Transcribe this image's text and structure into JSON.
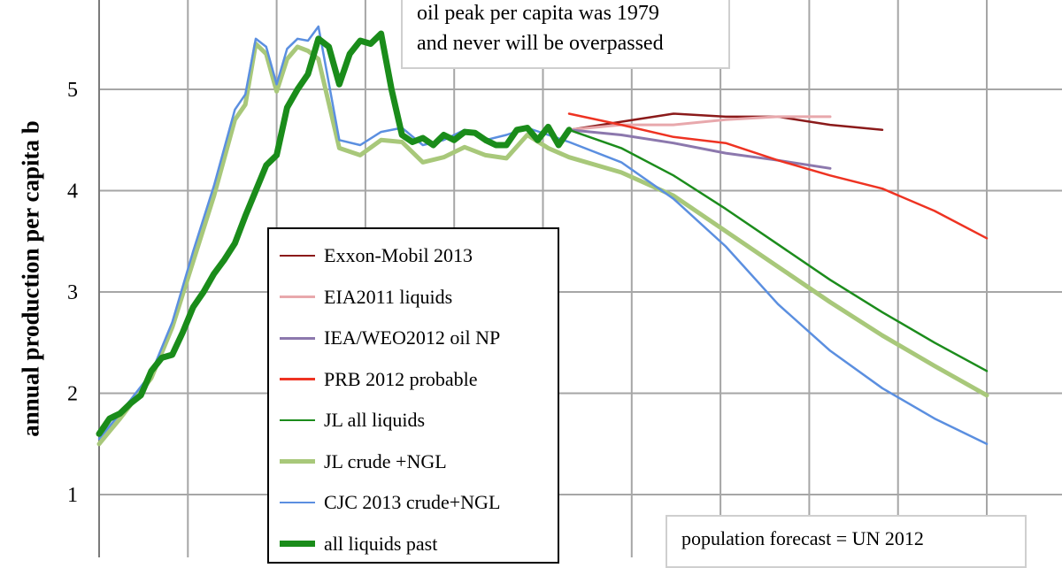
{
  "chart_data": {
    "type": "line",
    "title": "",
    "ylabel": "annual production per capita b",
    "xlabel": "",
    "ylim": [
      1,
      5.5
    ],
    "yticks": [
      1,
      2,
      3,
      4,
      5
    ],
    "grid": true,
    "legend_position": "center-left",
    "annotations": {
      "top": [
        "oil peak per capita was 1979",
        "and never will be overpassed"
      ],
      "bottom": "population forecast = UN 2012"
    },
    "series": [
      {
        "name": "Exxon-Mobil 2013",
        "color": "#8b1a1a",
        "width": 2.5,
        "x": [
          2010,
          2015,
          2020,
          2025,
          2030,
          2035,
          2040
        ],
        "y": [
          4.6,
          4.68,
          4.76,
          4.73,
          4.73,
          4.65,
          4.6
        ]
      },
      {
        "name": "EIA2011 liquids",
        "color": "#e8a8ac",
        "width": 3,
        "x": [
          2010,
          2015,
          2020,
          2025,
          2030,
          2035
        ],
        "y": [
          4.6,
          4.65,
          4.65,
          4.7,
          4.73,
          4.73
        ]
      },
      {
        "name": "IEA/WEO2012 oil NP",
        "color": "#8c78ad",
        "width": 3,
        "x": [
          2010,
          2015,
          2020,
          2025,
          2030,
          2035
        ],
        "y": [
          4.6,
          4.55,
          4.47,
          4.37,
          4.3,
          4.22
        ]
      },
      {
        "name": "PRB 2012 probable",
        "color": "#ee3322",
        "width": 2.5,
        "x": [
          2010,
          2015,
          2020,
          2025,
          2030,
          2035,
          2040,
          2045,
          2050
        ],
        "y": [
          4.76,
          4.65,
          4.53,
          4.47,
          4.3,
          4.15,
          4.02,
          3.8,
          3.53
        ]
      },
      {
        "name": "JL all liquids",
        "color": "#1c8c1c",
        "width": 2.5,
        "x": [
          2010,
          2015,
          2020,
          2025,
          2030,
          2035,
          2040,
          2045,
          2050
        ],
        "y": [
          4.6,
          4.42,
          4.15,
          3.82,
          3.47,
          3.12,
          2.8,
          2.5,
          2.22
        ]
      },
      {
        "name": "JL crude +NGL",
        "color": "#a8c87a",
        "width": 5,
        "x": [
          1965,
          1967,
          1970,
          1972,
          1974,
          1976,
          1978,
          1979,
          1980,
          1981,
          1982,
          1983,
          1984,
          1985,
          1986,
          1988,
          1990,
          1992,
          1994,
          1996,
          1998,
          2000,
          2002,
          2004,
          2006,
          2008,
          2010,
          2015,
          2020,
          2025,
          2030,
          2035,
          2040,
          2045,
          2050
        ],
        "y": [
          1.5,
          1.75,
          2.15,
          2.65,
          3.3,
          3.95,
          4.7,
          4.85,
          5.45,
          5.35,
          4.98,
          5.3,
          5.42,
          5.38,
          5.3,
          4.42,
          4.35,
          4.5,
          4.48,
          4.28,
          4.33,
          4.43,
          4.35,
          4.32,
          4.55,
          4.42,
          4.33,
          4.18,
          3.95,
          3.6,
          3.25,
          2.9,
          2.57,
          2.27,
          1.98
        ]
      },
      {
        "name": "CJC 2013 crude+NGL",
        "color": "#5b8fe0",
        "width": 2.5,
        "x": [
          1965,
          1967,
          1970,
          1972,
          1974,
          1976,
          1978,
          1979,
          1980,
          1981,
          1982,
          1983,
          1984,
          1985,
          1986,
          1988,
          1990,
          1992,
          1994,
          1996,
          1998,
          2000,
          2002,
          2004,
          2006,
          2008,
          2010,
          2015,
          2020,
          2025,
          2030,
          2035,
          2040,
          2045,
          2050
        ],
        "y": [
          1.55,
          1.8,
          2.2,
          2.7,
          3.4,
          4.05,
          4.8,
          4.95,
          5.5,
          5.42,
          5.05,
          5.4,
          5.5,
          5.48,
          5.62,
          4.5,
          4.45,
          4.58,
          4.62,
          4.45,
          4.5,
          4.6,
          4.5,
          4.55,
          4.62,
          4.55,
          4.48,
          4.28,
          3.92,
          3.45,
          2.88,
          2.42,
          2.05,
          1.75,
          1.5
        ]
      },
      {
        "name": "all liquids past",
        "color": "#1a8c1a",
        "width": 7,
        "x": [
          1965,
          1966,
          1967,
          1968,
          1969,
          1970,
          1971,
          1972,
          1973,
          1974,
          1975,
          1976,
          1977,
          1978,
          1979,
          1980,
          1981,
          1982,
          1983,
          1984,
          1985,
          1986,
          1987,
          1988,
          1989,
          1990,
          1991,
          1992,
          1993,
          1994,
          1995,
          1996,
          1997,
          1998,
          1999,
          2000,
          2001,
          2002,
          2003,
          2004,
          2005,
          2006,
          2007,
          2008,
          2009,
          2010
        ],
        "y": [
          1.6,
          1.75,
          1.8,
          1.9,
          1.98,
          2.22,
          2.35,
          2.38,
          2.6,
          2.85,
          3.0,
          3.18,
          3.32,
          3.48,
          3.75,
          4.0,
          4.25,
          4.35,
          4.82,
          5.0,
          5.15,
          5.5,
          5.42,
          5.05,
          5.35,
          5.48,
          5.45,
          5.55,
          5.0,
          4.55,
          4.48,
          4.52,
          4.45,
          4.55,
          4.5,
          4.58,
          4.57,
          4.5,
          4.45,
          4.45,
          4.6,
          4.62,
          4.5,
          4.63,
          4.45,
          4.6
        ]
      }
    ]
  }
}
